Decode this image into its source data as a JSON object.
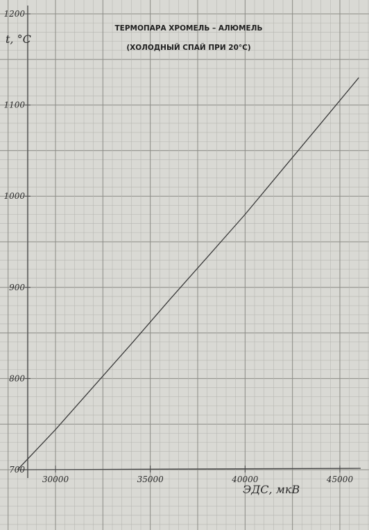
{
  "chart_data": {
    "type": "line",
    "title": "ТЕРМОПАРА ХРОМЕЛЬ – АЛЮМЕЛЬ",
    "subtitle": "(ХОЛОДНЫЙ СПАЙ ПРИ 20°С)",
    "xlabel": "ЭДС, мкВ",
    "ylabel": "t, °C",
    "xlim": [
      27500,
      46500
    ],
    "ylim": [
      700,
      1200
    ],
    "x_ticks": [
      30000,
      35000,
      40000,
      45000
    ],
    "y_ticks": [
      700,
      800,
      900,
      1000,
      1100,
      1200
    ],
    "x_tick_labels": [
      "30000",
      "35000",
      "40000",
      "45000"
    ],
    "y_tick_labels": [
      "700",
      "800",
      "900",
      "1000",
      "1100",
      "1200"
    ],
    "grid": true,
    "series": [
      {
        "x": [
          28000,
          30000,
          32000,
          34000,
          36000,
          38000,
          40000,
          42000,
          44000,
          46000
        ],
        "y": [
          700,
          744,
          791,
          838,
          886,
          933,
          980,
          1030,
          1080,
          1130
        ]
      }
    ]
  },
  "colors": {
    "paper": "#d9d9d4",
    "grid_minor": "#b5b5b0",
    "grid_major": "#8a8a85",
    "curve": "#3a3a3a",
    "axis": "#444444",
    "text": "#2a2a2a"
  }
}
